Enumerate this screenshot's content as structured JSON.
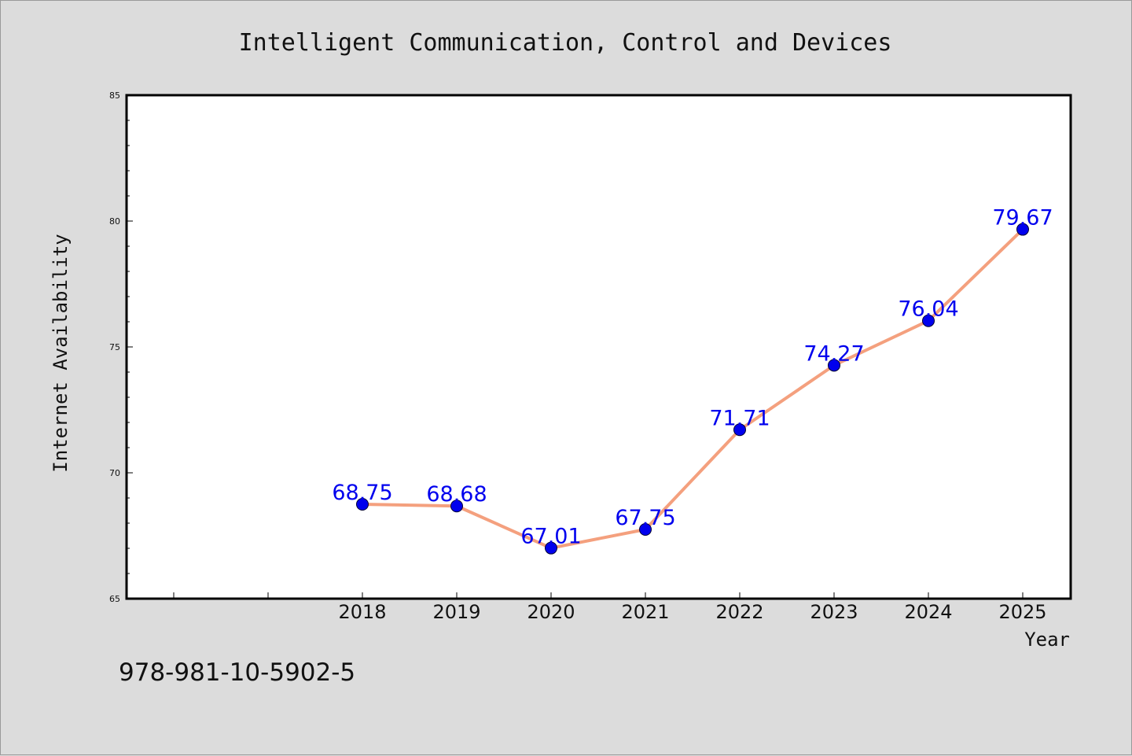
{
  "footnote": "978-981-10-5902-5",
  "colors": {
    "background": "#dcdcdc",
    "plot_background": "#ffffff",
    "line": "#f4a07e",
    "marker": "#0000ee",
    "data_label": "#0000ee"
  },
  "chart_data": {
    "type": "line",
    "title": "Intelligent Communication, Control and Devices",
    "xlabel": "Year",
    "ylabel": "Internet Availability",
    "x": [
      "2018",
      "2019",
      "2020",
      "2021",
      "2022",
      "2023",
      "2024",
      "2025"
    ],
    "series": [
      {
        "values": [
          68.75,
          68.68,
          67.01,
          67.75,
          71.71,
          74.27,
          76.04,
          79.67
        ]
      }
    ],
    "data_labels": [
      "68.75",
      "68.68",
      "67.01",
      "67.75",
      "71.71",
      "74.27",
      "76.04",
      "79.67"
    ],
    "ylim": [
      65,
      85
    ],
    "yticks": [
      "65",
      "70",
      "75",
      "80",
      "85"
    ],
    "grid": false,
    "legend": "none"
  }
}
